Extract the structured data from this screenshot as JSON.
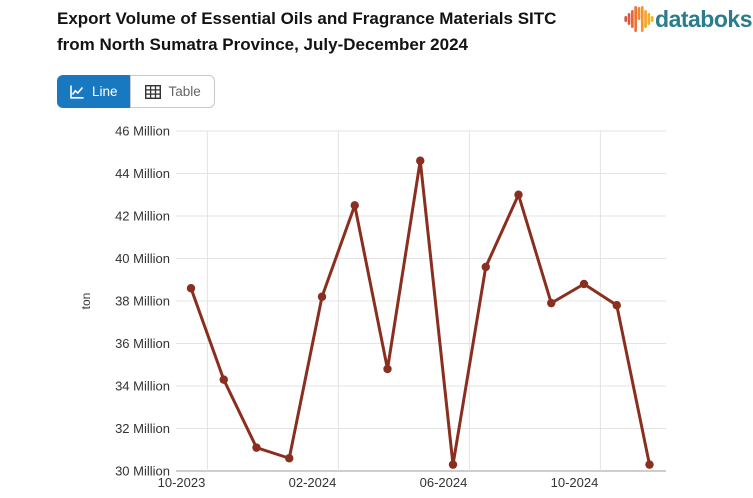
{
  "header": {
    "title": "Export Volume of Essential Oils and Fragrance Materials SITC from North Sumatra Province, July-December 2024",
    "title_lines": [
      "Export Volume of Essential Oils and Fragrance Materials SITC",
      "from North Sumatra Province, July-December 2024"
    ]
  },
  "logo": {
    "text": "databoks",
    "icon": "databoks-bars-icon",
    "text_color": "#2a7d8c",
    "bar_colors": [
      "#d94f43",
      "#dd5740",
      "#e4663b",
      "#ea7635",
      "#f0862f",
      "#f3952b",
      "#f5a427",
      "#f6ac24",
      "#f7b321"
    ]
  },
  "toolbar": {
    "line_button": {
      "label": "Line",
      "icon": "line-chart-icon",
      "active": true,
      "bg": "#1879c0"
    },
    "table_button": {
      "label": "Table",
      "icon": "table-grid-icon",
      "active": false
    }
  },
  "chart_data": {
    "type": "line",
    "title": "Export Volume of Essential Oils and Fragrance Materials SITC from North Sumatra Province, July-December 2024",
    "xlabel": "",
    "ylabel": "ton",
    "x": [
      "10-2023",
      "11-2023",
      "12-2023",
      "01-2024",
      "02-2024",
      "03-2024",
      "04-2024",
      "05-2024",
      "06-2024",
      "07-2024",
      "08-2024",
      "09-2024",
      "10-2024",
      "11-2024",
      "12-2024"
    ],
    "values_million_tons": [
      38.6,
      34.3,
      31.1,
      30.6,
      38.2,
      42.5,
      34.8,
      44.6,
      30.3,
      39.6,
      43.0,
      37.9,
      38.8,
      37.8,
      30.3
    ],
    "y_unit": "Million ton",
    "ylim_million": [
      30,
      46
    ],
    "ytick_step_million": 2,
    "ytick_labels": [
      "30 Million",
      "32 Million",
      "34 Million",
      "36 Million",
      "38 Million",
      "40 Million",
      "42 Million",
      "44 Million",
      "46 Million"
    ],
    "xtick_labels": [
      "10-2023",
      "02-2024",
      "06-2024",
      "10-2024"
    ],
    "xtick_indices": [
      0,
      4,
      8,
      12
    ],
    "line_color": "#8a2e1f",
    "marker": "circle",
    "grid": true,
    "legend": "none"
  }
}
